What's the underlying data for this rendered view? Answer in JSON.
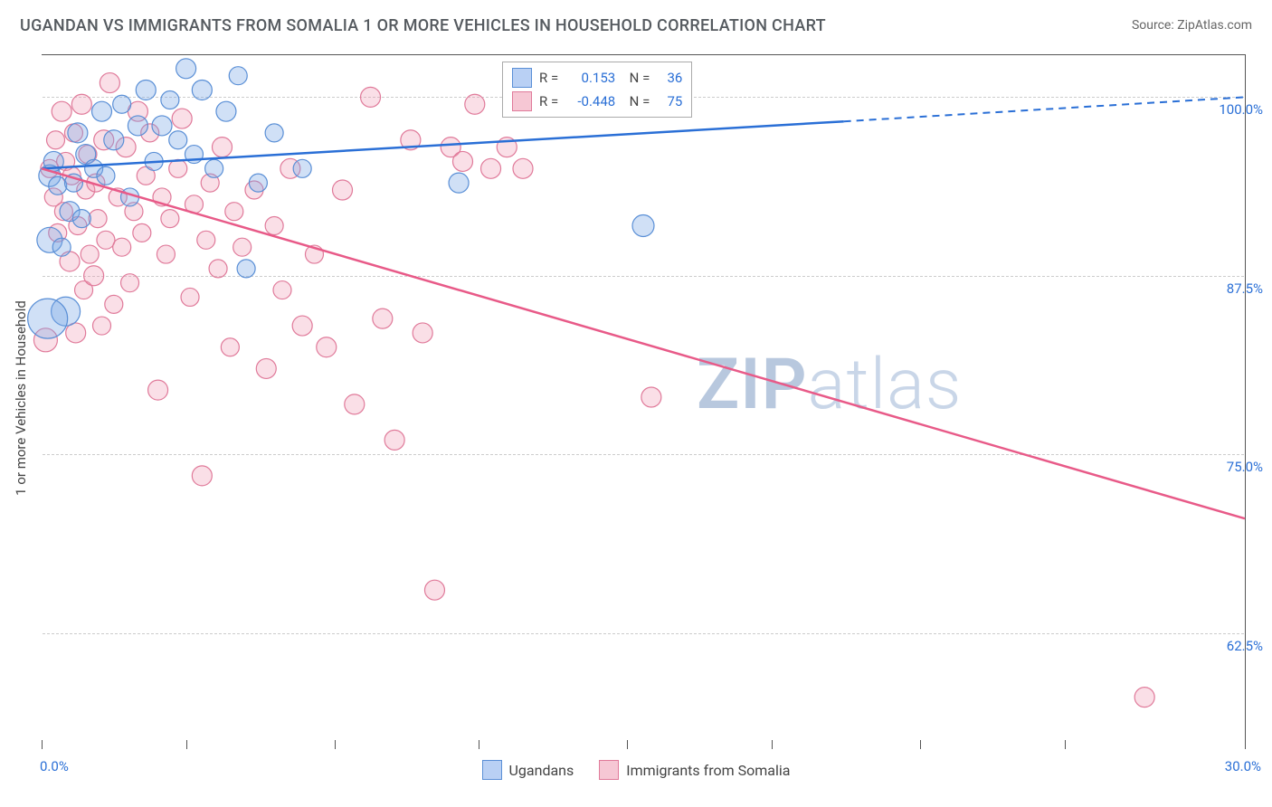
{
  "title": "UGANDAN VS IMMIGRANTS FROM SOMALIA 1 OR MORE VEHICLES IN HOUSEHOLD CORRELATION CHART",
  "source": "Source: ZipAtlas.com",
  "watermark": {
    "bold": "ZIP",
    "light": "atlas"
  },
  "y_axis_title": "1 or more Vehicles in Household",
  "chart": {
    "type": "scatter",
    "xlim": [
      0,
      30
    ],
    "ylim": [
      55,
      103
    ],
    "x_ticks_pct": [
      0,
      3.6,
      7.3,
      10.9,
      14.6,
      18.2,
      21.9,
      25.5,
      30
    ],
    "x_tick_labels": {
      "0": "0.0%",
      "30": "30.0%"
    },
    "y_ticks": [
      62.5,
      75.0,
      87.5,
      100.0
    ],
    "y_tick_labels": [
      "62.5%",
      "75.0%",
      "87.5%",
      "100.0%"
    ],
    "grid_color": "#cccccc",
    "background_color": "#ffffff",
    "series": {
      "blue": {
        "label": "Ugandans",
        "color_fill": "rgba(120,165,230,0.35)",
        "color_stroke": "#5a8fd6",
        "R": "0.153",
        "N": "36",
        "trend": {
          "x1": 0,
          "y1": 95.0,
          "x2_solid": 20,
          "x2_dash": 30,
          "y2_solid": 98.3,
          "y2_dash": 100.0
        },
        "points": [
          [
            0.2,
            94.5,
            12
          ],
          [
            0.2,
            90.0,
            14
          ],
          [
            0.3,
            95.5,
            11
          ],
          [
            0.4,
            93.8,
            10
          ],
          [
            0.5,
            89.5,
            10
          ],
          [
            0.6,
            85.0,
            16
          ],
          [
            0.7,
            92.0,
            11
          ],
          [
            0.8,
            94.0,
            10
          ],
          [
            0.9,
            97.5,
            11
          ],
          [
            1.0,
            91.5,
            10
          ],
          [
            1.1,
            96.0,
            11
          ],
          [
            1.3,
            95.0,
            10
          ],
          [
            1.5,
            99.0,
            11
          ],
          [
            1.6,
            94.5,
            10
          ],
          [
            1.8,
            97.0,
            11
          ],
          [
            2.0,
            99.5,
            10
          ],
          [
            2.2,
            93.0,
            10
          ],
          [
            2.4,
            98.0,
            11
          ],
          [
            2.6,
            100.5,
            11
          ],
          [
            2.8,
            95.5,
            10
          ],
          [
            3.0,
            98.0,
            11
          ],
          [
            3.2,
            99.8,
            10
          ],
          [
            3.4,
            97.0,
            10
          ],
          [
            3.6,
            102.0,
            11
          ],
          [
            3.8,
            96.0,
            10
          ],
          [
            4.0,
            100.5,
            11
          ],
          [
            4.3,
            95.0,
            10
          ],
          [
            4.6,
            99.0,
            11
          ],
          [
            4.9,
            101.5,
            10
          ],
          [
            5.1,
            88.0,
            10
          ],
          [
            5.4,
            94.0,
            10
          ],
          [
            5.8,
            97.5,
            10
          ],
          [
            6.5,
            95.0,
            10
          ],
          [
            10.4,
            94.0,
            11
          ],
          [
            15.0,
            91.0,
            12
          ],
          [
            0.15,
            84.5,
            22
          ]
        ]
      },
      "pink": {
        "label": "Immigrants from Somalia",
        "color_fill": "rgba(240,150,175,0.30)",
        "color_stroke": "#e07a9a",
        "R": "-0.448",
        "N": "75",
        "trend": {
          "x1": 0,
          "y1": 95.0,
          "x2": 30,
          "y2": 70.5
        },
        "points": [
          [
            0.2,
            95.0,
            10
          ],
          [
            0.3,
            93.0,
            10
          ],
          [
            0.35,
            97.0,
            10
          ],
          [
            0.4,
            90.5,
            10
          ],
          [
            0.5,
            99.0,
            11
          ],
          [
            0.55,
            92.0,
            10
          ],
          [
            0.6,
            95.5,
            10
          ],
          [
            0.7,
            88.5,
            11
          ],
          [
            0.75,
            94.5,
            10
          ],
          [
            0.8,
            97.5,
            10
          ],
          [
            0.85,
            83.5,
            11
          ],
          [
            0.9,
            91.0,
            10
          ],
          [
            1.0,
            99.5,
            11
          ],
          [
            1.05,
            86.5,
            10
          ],
          [
            1.1,
            93.5,
            10
          ],
          [
            1.15,
            96.0,
            10
          ],
          [
            1.2,
            89.0,
            10
          ],
          [
            1.3,
            87.5,
            11
          ],
          [
            1.35,
            94.0,
            10
          ],
          [
            1.4,
            91.5,
            10
          ],
          [
            1.5,
            84.0,
            10
          ],
          [
            1.55,
            97.0,
            11
          ],
          [
            1.6,
            90.0,
            10
          ],
          [
            1.7,
            101.0,
            11
          ],
          [
            1.8,
            85.5,
            10
          ],
          [
            1.9,
            93.0,
            10
          ],
          [
            2.0,
            89.5,
            10
          ],
          [
            2.1,
            96.5,
            11
          ],
          [
            2.2,
            87.0,
            10
          ],
          [
            2.3,
            92.0,
            10
          ],
          [
            2.4,
            99.0,
            11
          ],
          [
            2.5,
            90.5,
            10
          ],
          [
            2.6,
            94.5,
            10
          ],
          [
            2.7,
            97.5,
            10
          ],
          [
            2.9,
            79.5,
            11
          ],
          [
            3.0,
            93.0,
            10
          ],
          [
            3.1,
            89.0,
            10
          ],
          [
            3.2,
            91.5,
            10
          ],
          [
            3.4,
            95.0,
            10
          ],
          [
            3.5,
            98.5,
            11
          ],
          [
            3.7,
            86.0,
            10
          ],
          [
            3.8,
            92.5,
            10
          ],
          [
            4.0,
            73.5,
            11
          ],
          [
            4.1,
            90.0,
            10
          ],
          [
            4.2,
            94.0,
            10
          ],
          [
            4.4,
            88.0,
            10
          ],
          [
            4.5,
            96.5,
            11
          ],
          [
            4.7,
            82.5,
            10
          ],
          [
            4.8,
            92.0,
            10
          ],
          [
            5.0,
            89.5,
            10
          ],
          [
            5.3,
            93.5,
            10
          ],
          [
            5.6,
            81.0,
            11
          ],
          [
            5.8,
            91.0,
            10
          ],
          [
            6.0,
            86.5,
            10
          ],
          [
            6.2,
            95.0,
            11
          ],
          [
            6.5,
            84.0,
            11
          ],
          [
            6.8,
            89.0,
            10
          ],
          [
            7.1,
            82.5,
            11
          ],
          [
            7.5,
            93.5,
            11
          ],
          [
            7.8,
            78.5,
            11
          ],
          [
            8.2,
            100.0,
            11
          ],
          [
            8.5,
            84.5,
            11
          ],
          [
            8.8,
            76.0,
            11
          ],
          [
            9.2,
            97.0,
            11
          ],
          [
            9.5,
            83.5,
            11
          ],
          [
            9.8,
            65.5,
            11
          ],
          [
            10.2,
            96.5,
            11
          ],
          [
            10.5,
            95.5,
            11
          ],
          [
            10.8,
            99.5,
            11
          ],
          [
            11.2,
            95.0,
            11
          ],
          [
            11.6,
            96.5,
            11
          ],
          [
            12.0,
            95.0,
            11
          ],
          [
            15.2,
            79.0,
            11
          ],
          [
            27.5,
            58.0,
            11
          ],
          [
            0.1,
            83.0,
            13
          ]
        ]
      }
    }
  }
}
